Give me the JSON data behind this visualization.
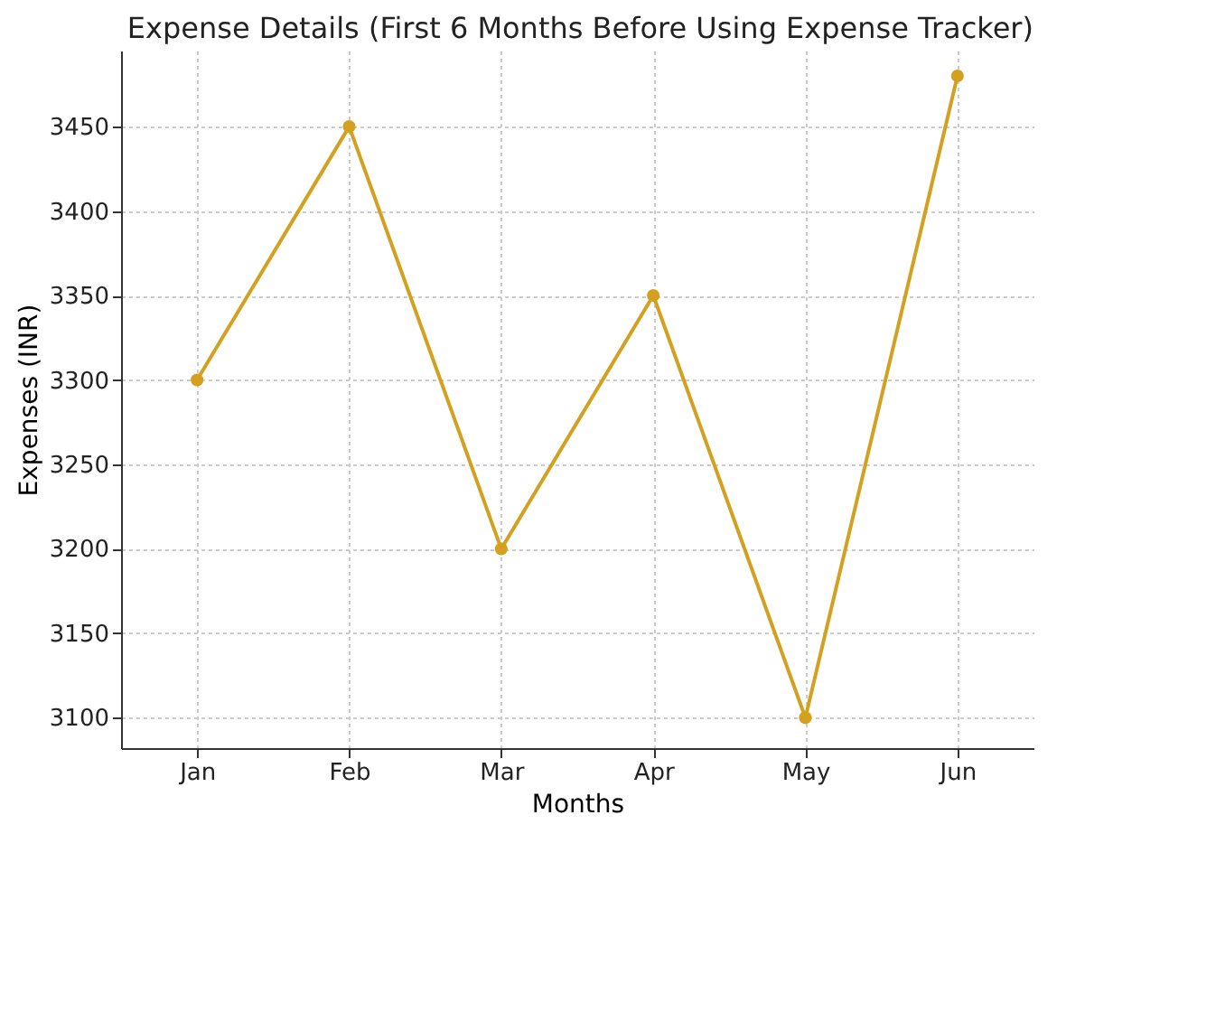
{
  "chart_data": {
    "type": "line",
    "title": "Expense Details (First 6 Months Before Using Expense Tracker)",
    "xlabel": "Months",
    "ylabel": "Expenses (INR)",
    "categories": [
      "Jan",
      "Feb",
      "Mar",
      "Apr",
      "May",
      "Jun"
    ],
    "series": [
      {
        "color": "#d4a020",
        "values": [
          3300,
          3450,
          3200,
          3350,
          3100,
          3480
        ]
      }
    ],
    "ylim": [
      3082,
      3495
    ],
    "yticks": [
      3100,
      3150,
      3200,
      3250,
      3300,
      3350,
      3400,
      3450
    ],
    "grid": true,
    "marker": "circle",
    "line_style": "solid"
  }
}
